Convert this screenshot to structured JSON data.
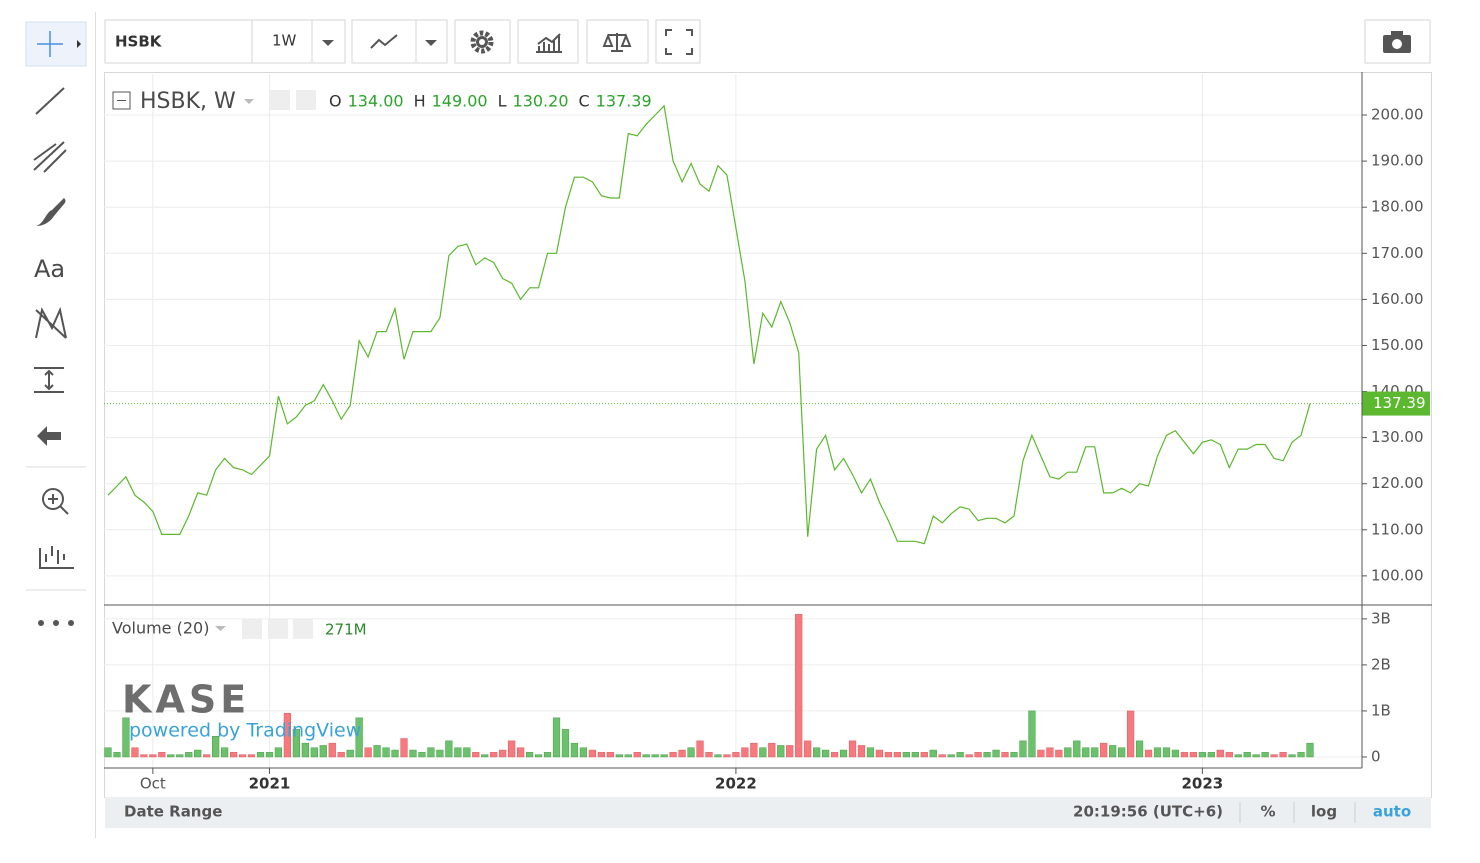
{
  "toolbar": {
    "symbol": "HSBK",
    "interval": "1W"
  },
  "side_toolbar": {
    "text_tool": "Aa"
  },
  "legend": {
    "symbol": "HSBK, W",
    "open_label": "O",
    "open": "134.00",
    "high_label": "H",
    "high": "149.00",
    "low_label": "L",
    "low": "130.20",
    "close_label": "C",
    "close": "137.39"
  },
  "volume_legend": {
    "name": "Volume (20)",
    "value": "271M"
  },
  "watermark": {
    "logo": "KASE",
    "text": "powered by TradingView"
  },
  "footer": {
    "date_range": "Date Range",
    "clock": "20:19:56 (UTC+6)",
    "percent": "%",
    "log": "log",
    "auto": "auto"
  },
  "chart_data": [
    {
      "type": "line",
      "categories": [
        null,
        null,
        null,
        null,
        null,
        "Oct",
        null,
        null,
        null,
        null,
        null,
        null,
        null,
        null,
        null,
        null,
        null,
        null,
        "2021",
        null,
        null,
        null,
        null,
        null,
        null,
        null,
        null,
        null,
        null,
        null,
        null,
        null,
        null,
        null,
        null,
        null,
        null,
        null,
        null,
        null,
        null,
        null,
        null,
        null,
        null,
        null,
        null,
        null,
        null,
        null,
        null,
        null,
        null,
        null,
        null,
        null,
        null,
        null,
        null,
        null,
        null,
        null,
        null,
        null,
        null,
        null,
        null,
        null,
        null,
        null,
        "2022",
        null,
        null,
        null,
        null,
        null,
        null,
        null,
        null,
        null,
        null,
        null,
        null,
        null,
        null,
        null,
        null,
        null,
        null,
        null,
        null,
        null,
        null,
        null,
        null,
        null,
        null,
        null,
        null,
        null,
        null,
        null,
        null,
        null,
        null,
        null,
        null,
        null,
        null,
        null,
        null,
        null,
        null,
        null,
        null,
        null,
        null,
        null,
        null,
        null,
        null,
        null,
        "2023",
        null,
        null,
        null,
        null,
        null,
        null,
        null,
        null,
        null,
        null,
        null,
        null
      ],
      "values": [
        117.5,
        119.5,
        121.5,
        117.5,
        116,
        114,
        109,
        109,
        109,
        113,
        118,
        117.5,
        123,
        125.5,
        123.5,
        123,
        122,
        124,
        126,
        139,
        133,
        134.5,
        137,
        138,
        141.5,
        138,
        134,
        137,
        151,
        147.5,
        153,
        153,
        158,
        147,
        153,
        153,
        153,
        156,
        169.5,
        171.5,
        172,
        167.5,
        169,
        168,
        164.5,
        163.5,
        160,
        162.5,
        162.5,
        170,
        170,
        180,
        186.5,
        186.5,
        185.5,
        182.5,
        182,
        182,
        196,
        195.5,
        198,
        200,
        202,
        190,
        185.5,
        189.5,
        185,
        183.5,
        189,
        187,
        175.5,
        164,
        146,
        157,
        154,
        159.5,
        155,
        148.5,
        108.5,
        127.5,
        130.5,
        123,
        125.5,
        122,
        118,
        121,
        116,
        112,
        107.5,
        107.5,
        107.5,
        107,
        113,
        111.5,
        113.5,
        115,
        114.5,
        112,
        112.5,
        112.5,
        111.5,
        113,
        125,
        130.5,
        126,
        121.5,
        121,
        122.5,
        122.5,
        128,
        128,
        118,
        118,
        119,
        118,
        120,
        119.5,
        126,
        130.5,
        131.5,
        129,
        126.5,
        129,
        129.5,
        128.5,
        123.5,
        127.5,
        127.5,
        128.5,
        128.5,
        125.5,
        125,
        129,
        130.5,
        137.39
      ],
      "color": "#5cb82e",
      "ylim": [
        93.9,
        208.9
      ],
      "yticks": [
        {
          "value": 100,
          "label": "100.00"
        },
        {
          "value": 110,
          "label": "110.00"
        },
        {
          "value": 120,
          "label": "120.00"
        },
        {
          "value": 130,
          "label": "130.00"
        },
        {
          "value": 140,
          "label": "140.00"
        },
        {
          "value": 150,
          "label": "150.00"
        },
        {
          "value": 160,
          "label": "160.00"
        },
        {
          "value": 170,
          "label": "170.00"
        },
        {
          "value": 180,
          "label": "180.00"
        },
        {
          "value": 190,
          "label": "190.00"
        },
        {
          "value": 200,
          "label": "200.00"
        }
      ],
      "grid": true,
      "last_value_line": true
    },
    {
      "type": "bar",
      "values": [
        0.2,
        0.1,
        0.85,
        0.2,
        0.05,
        0.05,
        0.1,
        0.05,
        0.05,
        0.1,
        0.15,
        0.05,
        0.45,
        0.2,
        0.1,
        0.05,
        0.05,
        0.1,
        0.1,
        0.2,
        0.95,
        0.6,
        0.3,
        0.2,
        0.25,
        0.3,
        0.1,
        0.15,
        0.85,
        0.2,
        0.25,
        0.2,
        0.15,
        0.4,
        0.15,
        0.1,
        0.2,
        0.15,
        0.35,
        0.2,
        0.2,
        0.1,
        0.05,
        0.1,
        0.15,
        0.35,
        0.2,
        0.1,
        0.05,
        0.1,
        0.85,
        0.6,
        0.3,
        0.2,
        0.15,
        0.1,
        0.1,
        0.05,
        0.05,
        0.1,
        0.05,
        0.05,
        0.05,
        0.1,
        0.15,
        0.2,
        0.35,
        0.1,
        0.05,
        0.05,
        0.1,
        0.2,
        0.3,
        0.2,
        0.3,
        0.25,
        0.25,
        3.1,
        0.35,
        0.2,
        0.15,
        0.1,
        0.15,
        0.35,
        0.25,
        0.2,
        0.15,
        0.1,
        0.1,
        0.1,
        0.1,
        0.1,
        0.15,
        0.05,
        0.05,
        0.1,
        0.05,
        0.1,
        0.1,
        0.15,
        0.1,
        0.1,
        0.35,
        1.0,
        0.15,
        0.2,
        0.15,
        0.2,
        0.35,
        0.2,
        0.2,
        0.3,
        0.25,
        0.2,
        1.0,
        0.35,
        0.15,
        0.2,
        0.2,
        0.15,
        0.1,
        0.1,
        0.1,
        0.1,
        0.15,
        0.1,
        0.05,
        0.1,
        0.05,
        0.1,
        0.05,
        0.1,
        0.05,
        0.1,
        0.3
      ],
      "up_color": "#6cc26c",
      "down_color": "#f7797e",
      "ylim": [
        -0.24,
        3.28
      ],
      "yticks": [
        0,
        {
          "value": 1,
          "label": "1B"
        },
        {
          "value": 2,
          "label": "2B"
        },
        {
          "value": 3,
          "label": "3B"
        }
      ],
      "grid": true
    }
  ]
}
